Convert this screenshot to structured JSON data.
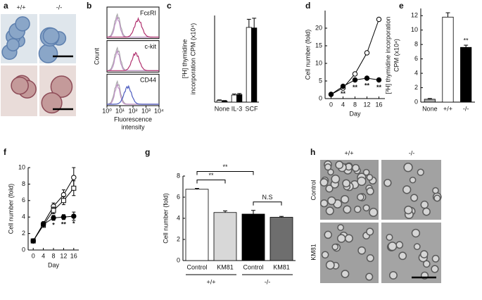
{
  "panel_a": {
    "label": "a",
    "columns": [
      "+/+",
      "-/-"
    ]
  },
  "panel_h": {
    "label": "h",
    "columns": [
      "+/+",
      "-/-"
    ],
    "rows": [
      "Control",
      "KM81"
    ]
  },
  "chart_data": [
    {
      "type": "flow",
      "label": "b",
      "ylabel": "Count",
      "xlabel": [
        "Fluorescence",
        "intensity"
      ],
      "panels": [
        "FcεRI",
        "c-kit",
        "CD44"
      ],
      "xlog": true,
      "xlim": [
        1,
        10000
      ],
      "xticks": [
        {
          "value": 1,
          "label": "10⁰"
        },
        {
          "value": 10,
          "label": "10¹"
        },
        {
          "value": 100,
          "label": "10²"
        },
        {
          "value": 1000,
          "label": "10³"
        },
        {
          "value": 10000,
          "label": "10⁴"
        }
      ]
    },
    {
      "type": "bar",
      "label": "c",
      "ylabel": [
        "[³H] thymidine",
        "incorporation CPM (x10⁴)"
      ],
      "categories": [
        "None",
        "IL-3",
        "SCF"
      ],
      "ylim": [
        0,
        16
      ],
      "series": [
        {
          "color": "#ffffff",
          "values": [
            0.3,
            1.3,
            13.8
          ],
          "errors": [
            0.1,
            0.2,
            1.5
          ]
        },
        {
          "color": "#000000",
          "values": [
            0.2,
            1.4,
            13.7
          ],
          "errors": [
            0.1,
            0.2,
            1.8
          ]
        }
      ]
    },
    {
      "type": "line",
      "label": "d",
      "ylabel": "Cell number (fold)",
      "xlabel": "Day",
      "x": [
        0,
        4,
        8,
        12,
        16
      ],
      "xlim": [
        -2,
        18
      ],
      "xticks": [
        0,
        4,
        8,
        12,
        16
      ],
      "ylim": [
        0,
        25
      ],
      "yticks": [
        0,
        5,
        10,
        15,
        20
      ],
      "series": [
        {
          "color": "#ffffff",
          "marker": "circle",
          "values": [
            1.2,
            3.0,
            7.0,
            13.0,
            22.5
          ]
        },
        {
          "color": "#000000",
          "marker": "circle",
          "values": [
            1.2,
            3.5,
            5.3,
            5.8,
            5.3
          ]
        }
      ],
      "annotations": [
        "**",
        "**",
        "**",
        "**"
      ]
    },
    {
      "type": "bar",
      "label": "e",
      "ylabel": [
        "[³H] thymidine incorporation",
        "CPM (x10⁴)"
      ],
      "categories": [
        "None",
        "+/+",
        "-/-"
      ],
      "ylim": [
        0,
        13
      ],
      "yticks": [
        0,
        2,
        4,
        6,
        8,
        10,
        12
      ],
      "values": [
        0.4,
        11.8,
        7.6
      ],
      "errors": [
        0.1,
        0.6,
        0.3
      ],
      "colors": [
        "#a8a8a8",
        "#ffffff",
        "#000000"
      ],
      "annotations": [
        "**"
      ]
    },
    {
      "type": "line",
      "label": "f",
      "ylabel": "Cell number (fold)",
      "xlabel": "Day",
      "x": [
        0,
        4,
        8,
        12,
        16
      ],
      "xlim": [
        -2,
        18
      ],
      "xticks": [
        0,
        4,
        8,
        12,
        16
      ],
      "ylim": [
        0,
        10
      ],
      "yticks": [
        0,
        2,
        4,
        6,
        8,
        10
      ],
      "series": [
        {
          "color": "#ffffff",
          "marker": "circle",
          "values": [
            1.1,
            3.2,
            5.3,
            6.7,
            8.8
          ],
          "errors": [
            0.1,
            0.2,
            0.4,
            0.6,
            1.2
          ]
        },
        {
          "color": "#ffffff",
          "marker": "square",
          "values": [
            1.1,
            3.0,
            4.8,
            6.0,
            7.5
          ],
          "errors": [
            0.1,
            0.2,
            0.4,
            0.5,
            0.9
          ]
        },
        {
          "color": "#000000",
          "marker": "circle",
          "values": [
            1.1,
            3.1,
            3.9,
            4.0,
            4.1
          ],
          "errors": [
            0.1,
            0.1,
            0.3,
            0.3,
            0.5
          ]
        }
      ],
      "annotations": [
        "*",
        "**",
        "*"
      ]
    },
    {
      "type": "bar",
      "label": "g",
      "ylabel": "Cell number (fold)",
      "categories": [
        "Control",
        "KM81",
        "Control",
        "KM81"
      ],
      "groups": [
        "+/+",
        "-/-"
      ],
      "ylim": [
        0,
        8
      ],
      "yticks": [
        0,
        2,
        4,
        6,
        8
      ],
      "values": [
        6.75,
        4.55,
        4.4,
        4.1
      ],
      "errors": [
        0.08,
        0.15,
        0.35,
        0.08
      ],
      "colors": [
        "#ffffff",
        "#d8d8d8",
        "#000000",
        "#6e6e6e"
      ],
      "annotations": [
        "**",
        "**",
        "N.S"
      ]
    }
  ]
}
